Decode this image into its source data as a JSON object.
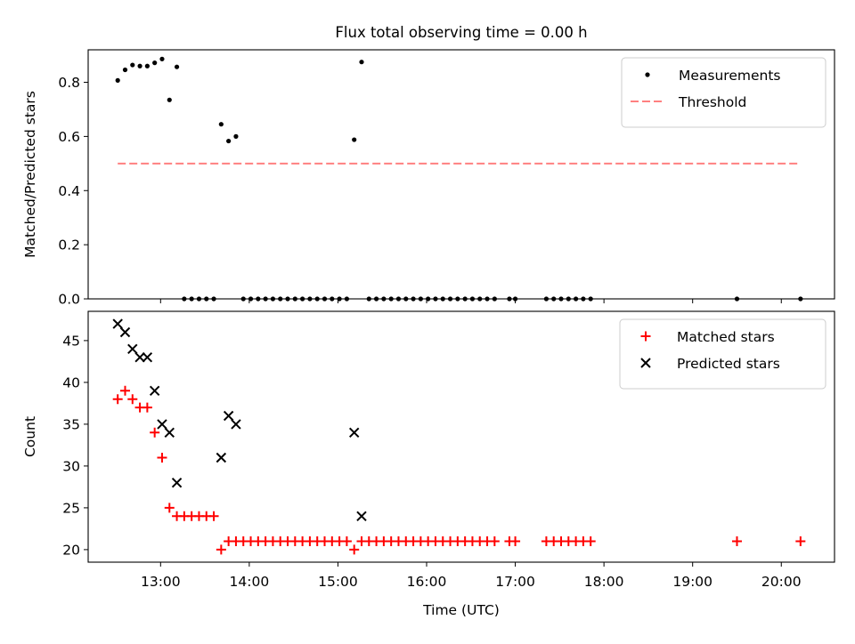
{
  "title": "Flux total observing time = 0.00 h",
  "colors": {
    "matched": "#ff0000",
    "predicted": "#000000",
    "measurements": "#000000",
    "threshold": "#ff8080"
  },
  "chart_data": [
    {
      "type": "scatter",
      "ylabel": "Matched/Predicted stars",
      "ylim": [
        0,
        0.92
      ],
      "yticks": [
        0,
        0.2,
        0.4,
        0.6,
        0.8
      ],
      "ytick_labels": [
        "0.0",
        "0.2",
        "0.4",
        "0.6",
        "0.8"
      ],
      "xlim": [
        "12:11",
        "20:36"
      ],
      "legend": {
        "placement": "top-right",
        "entries": [
          "Measurements",
          "Threshold"
        ]
      },
      "series": [
        {
          "name": "Measurements",
          "marker": "dot",
          "points": [
            [
              "12:31",
              0.807
            ],
            [
              "12:36",
              0.846
            ],
            [
              "12:41",
              0.864
            ],
            [
              "12:46",
              0.86
            ],
            [
              "12:51",
              0.86
            ],
            [
              "12:56",
              0.872
            ],
            [
              "13:01",
              0.886
            ],
            [
              "13:06",
              0.735
            ],
            [
              "13:11",
              0.857
            ],
            [
              "13:16",
              0
            ],
            [
              "13:21",
              0
            ],
            [
              "13:26",
              0
            ],
            [
              "13:31",
              0
            ],
            [
              "13:36",
              0
            ],
            [
              "13:41",
              0.645
            ],
            [
              "13:46",
              0.583
            ],
            [
              "13:51",
              0.6
            ],
            [
              "13:56",
              0
            ],
            [
              "14:01",
              0
            ],
            [
              "14:06",
              0
            ],
            [
              "14:11",
              0
            ],
            [
              "14:16",
              0
            ],
            [
              "14:21",
              0
            ],
            [
              "14:26",
              0
            ],
            [
              "14:31",
              0
            ],
            [
              "14:36",
              0
            ],
            [
              "14:41",
              0
            ],
            [
              "14:46",
              0
            ],
            [
              "14:51",
              0
            ],
            [
              "14:56",
              0
            ],
            [
              "15:01",
              0
            ],
            [
              "15:06",
              0
            ],
            [
              "15:11",
              0.588
            ],
            [
              "15:16",
              0.875
            ],
            [
              "15:21",
              0
            ],
            [
              "15:26",
              0
            ],
            [
              "15:31",
              0
            ],
            [
              "15:36",
              0
            ],
            [
              "15:41",
              0
            ],
            [
              "15:46",
              0
            ],
            [
              "15:51",
              0
            ],
            [
              "15:56",
              0
            ],
            [
              "16:01",
              0
            ],
            [
              "16:06",
              0
            ],
            [
              "16:11",
              0
            ],
            [
              "16:16",
              0
            ],
            [
              "16:21",
              0
            ],
            [
              "16:26",
              0
            ],
            [
              "16:31",
              0
            ],
            [
              "16:36",
              0
            ],
            [
              "16:41",
              0
            ],
            [
              "16:46",
              0
            ],
            [
              "16:56",
              0
            ],
            [
              "17:00",
              0
            ],
            [
              "17:21",
              0
            ],
            [
              "17:26",
              0
            ],
            [
              "17:31",
              0
            ],
            [
              "17:36",
              0
            ],
            [
              "17:41",
              0
            ],
            [
              "17:46",
              0
            ],
            [
              "17:51",
              0
            ],
            [
              "19:30",
              0
            ],
            [
              "20:13",
              0
            ]
          ]
        },
        {
          "name": "Threshold",
          "marker": "dashed-line",
          "points": [
            [
              "12:31",
              0.5
            ],
            [
              "20:13",
              0.5
            ]
          ]
        }
      ]
    },
    {
      "type": "scatter",
      "ylabel": "Count",
      "xlabel": "Time (UTC)",
      "ylim": [
        18.5,
        48.5
      ],
      "yticks": [
        20,
        25,
        30,
        35,
        40,
        45
      ],
      "xlim": [
        "12:11",
        "20:36"
      ],
      "xticks": [
        "13:00",
        "14:00",
        "15:00",
        "16:00",
        "17:00",
        "18:00",
        "19:00",
        "20:00"
      ],
      "legend": {
        "placement": "top-right",
        "entries": [
          "Matched stars",
          "Predicted stars"
        ]
      },
      "series": [
        {
          "name": "Matched stars",
          "marker": "plus",
          "points": [
            [
              "12:31",
              38
            ],
            [
              "12:36",
              39
            ],
            [
              "12:41",
              38
            ],
            [
              "12:46",
              37
            ],
            [
              "12:51",
              37
            ],
            [
              "12:56",
              34
            ],
            [
              "13:01",
              31
            ],
            [
              "13:06",
              25
            ],
            [
              "13:11",
              24
            ],
            [
              "13:16",
              24
            ],
            [
              "13:21",
              24
            ],
            [
              "13:26",
              24
            ],
            [
              "13:31",
              24
            ],
            [
              "13:36",
              24
            ],
            [
              "13:41",
              20
            ],
            [
              "13:46",
              21
            ],
            [
              "13:51",
              21
            ],
            [
              "13:56",
              21
            ],
            [
              "14:01",
              21
            ],
            [
              "14:06",
              21
            ],
            [
              "14:11",
              21
            ],
            [
              "14:16",
              21
            ],
            [
              "14:21",
              21
            ],
            [
              "14:26",
              21
            ],
            [
              "14:31",
              21
            ],
            [
              "14:36",
              21
            ],
            [
              "14:41",
              21
            ],
            [
              "14:46",
              21
            ],
            [
              "14:51",
              21
            ],
            [
              "14:56",
              21
            ],
            [
              "15:01",
              21
            ],
            [
              "15:06",
              21
            ],
            [
              "15:11",
              20
            ],
            [
              "15:16",
              21
            ],
            [
              "15:21",
              21
            ],
            [
              "15:26",
              21
            ],
            [
              "15:31",
              21
            ],
            [
              "15:36",
              21
            ],
            [
              "15:41",
              21
            ],
            [
              "15:46",
              21
            ],
            [
              "15:51",
              21
            ],
            [
              "15:56",
              21
            ],
            [
              "16:01",
              21
            ],
            [
              "16:06",
              21
            ],
            [
              "16:11",
              21
            ],
            [
              "16:16",
              21
            ],
            [
              "16:21",
              21
            ],
            [
              "16:26",
              21
            ],
            [
              "16:31",
              21
            ],
            [
              "16:36",
              21
            ],
            [
              "16:41",
              21
            ],
            [
              "16:46",
              21
            ],
            [
              "16:56",
              21
            ],
            [
              "17:00",
              21
            ],
            [
              "17:21",
              21
            ],
            [
              "17:26",
              21
            ],
            [
              "17:31",
              21
            ],
            [
              "17:36",
              21
            ],
            [
              "17:41",
              21
            ],
            [
              "17:46",
              21
            ],
            [
              "17:51",
              21
            ],
            [
              "19:30",
              21
            ],
            [
              "20:13",
              21
            ]
          ]
        },
        {
          "name": "Predicted stars",
          "marker": "x",
          "points": [
            [
              "12:31",
              47
            ],
            [
              "12:36",
              46
            ],
            [
              "12:41",
              44
            ],
            [
              "12:46",
              43
            ],
            [
              "12:51",
              43
            ],
            [
              "12:56",
              39
            ],
            [
              "13:01",
              35
            ],
            [
              "13:06",
              34
            ],
            [
              "13:11",
              28
            ],
            [
              "13:41",
              31
            ],
            [
              "13:46",
              36
            ],
            [
              "13:51",
              35
            ],
            [
              "15:11",
              34
            ],
            [
              "15:16",
              24
            ]
          ]
        }
      ]
    }
  ]
}
